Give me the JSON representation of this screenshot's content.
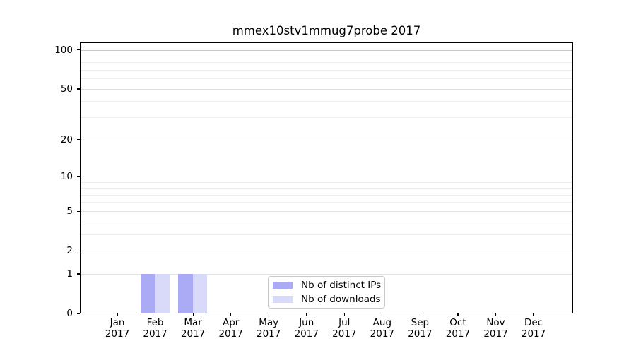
{
  "title": "mmex10stv1mmug7probe 2017",
  "chart_data": {
    "type": "bar",
    "title": "mmex10stv1mmug7probe 2017",
    "categories": [
      "Jan",
      "Feb",
      "Mar",
      "Apr",
      "May",
      "Jun",
      "Jul",
      "Aug",
      "Sep",
      "Oct",
      "Nov",
      "Dec"
    ],
    "x_year": "2017",
    "series": [
      {
        "name": "Nb of distinct IPs",
        "color": "#aaaaf5",
        "values": [
          0,
          1,
          1,
          0,
          0,
          0,
          0,
          0,
          0,
          0,
          0,
          0
        ]
      },
      {
        "name": "Nb of downloads",
        "color": "#d9d9fa",
        "values": [
          0,
          1,
          1,
          0,
          0,
          0,
          0,
          0,
          0,
          0,
          0,
          0
        ]
      }
    ],
    "yscale": "log1p",
    "ylim": [
      0,
      114
    ],
    "y_major_ticks": [
      0,
      1,
      2,
      5,
      10,
      20,
      50,
      100
    ],
    "y_minor_ticks": [
      3,
      4,
      6,
      7,
      8,
      9,
      30,
      40,
      60,
      70,
      80,
      90
    ],
    "grid": "horizontal",
    "legend_position": "lower-center-inside",
    "colors": {
      "grid_minor": "#eeeeee",
      "grid_major": "#e2e2e2",
      "grid_top": "#c8c8c8",
      "axis": "#000000",
      "legend_border": "#c9c9c9",
      "background": "#ffffff"
    }
  }
}
